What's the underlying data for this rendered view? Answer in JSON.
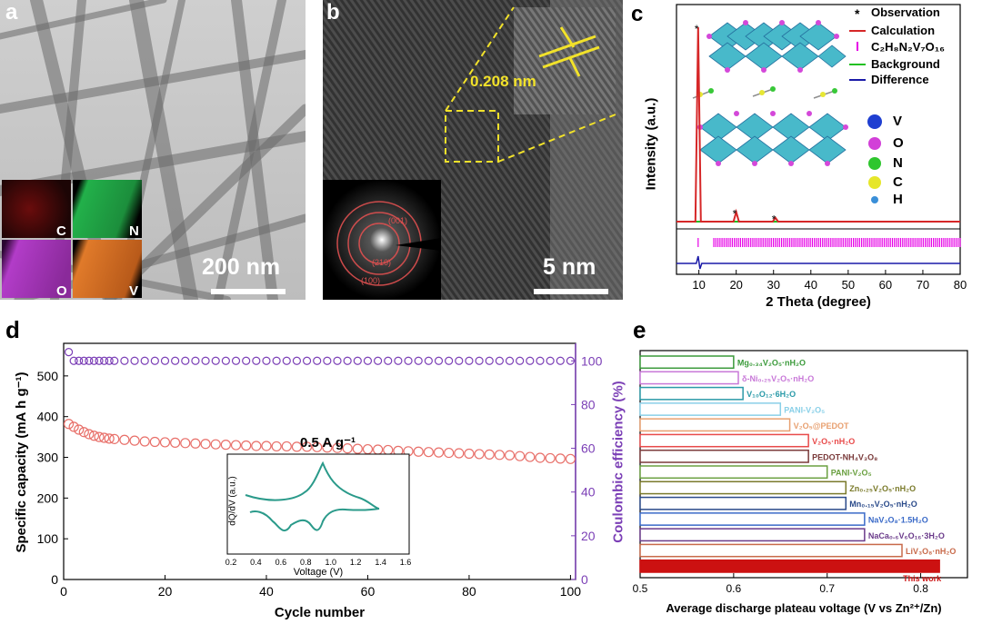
{
  "panel_a": {
    "label": "a",
    "scale_bar": "200 nm",
    "maps": [
      {
        "element": "C",
        "color": "#8a1a1a"
      },
      {
        "element": "N",
        "color": "#22b04a"
      },
      {
        "element": "O",
        "color": "#b23cc8"
      },
      {
        "element": "V",
        "color": "#e07a2a"
      }
    ]
  },
  "panel_b": {
    "label": "b",
    "scale_bar": "5 nm",
    "d_spacing": "0.208 nm",
    "saed_rings": [
      "(001)",
      "(210)",
      "(100)"
    ]
  },
  "panel_c": {
    "label": "c",
    "legend": {
      "observation": "Observation",
      "calculation": "Calculation",
      "phase": "C₂H₈N₂V₇O₁₆",
      "background": "Background",
      "difference": "Difference"
    },
    "atoms": [
      {
        "symbol": "V",
        "color": "#1f3fd1"
      },
      {
        "symbol": "O",
        "color": "#d23fd8"
      },
      {
        "symbol": "N",
        "color": "#2ec62e"
      },
      {
        "symbol": "C",
        "color": "#e6e62a"
      },
      {
        "symbol": "H",
        "color": "#3a8fd8"
      }
    ],
    "colors": {
      "observation": "#000000",
      "calculation": "#d62728",
      "bragg": "#e600e6",
      "background": "#22c022",
      "difference": "#1a1aa8"
    }
  },
  "panel_d": {
    "label": "d",
    "annotation": "0.5 A g⁻¹",
    "inset": {
      "xlabel": "Voltage (V)",
      "ylabel": "dQ/dV (a.u.)",
      "xticks": [
        "0.2",
        "0.4",
        "0.6",
        "0.8",
        "1.0",
        "1.2",
        "1.4",
        "1.6"
      ]
    }
  },
  "panel_e": {
    "label": "e"
  },
  "chart_data": [
    {
      "type": "line",
      "panel": "c",
      "xlabel": "2 Theta (degree)",
      "ylabel": "Intensity (a.u.)",
      "xlim": [
        4,
        80
      ],
      "xticks": [
        10,
        20,
        30,
        40,
        50,
        60,
        70,
        80
      ],
      "peaks": [
        {
          "x": 9.8,
          "relative_intensity": 1.0
        },
        {
          "x": 20.0,
          "relative_intensity": 0.05
        },
        {
          "x": 30.5,
          "relative_intensity": 0.02
        }
      ]
    },
    {
      "type": "scatter",
      "panel": "d",
      "xlabel": "Cycle number",
      "ylabel": "Specific capacity (mA h g⁻¹)",
      "y2label": "Coulombic efficiency (%)",
      "xlim": [
        0,
        101
      ],
      "ylim": [
        0,
        580
      ],
      "y2lim": [
        0,
        108
      ],
      "xticks": [
        0,
        20,
        40,
        60,
        80,
        100
      ],
      "yticks": [
        0,
        100,
        200,
        300,
        400,
        500
      ],
      "y2ticks": [
        0,
        20,
        40,
        60,
        80,
        100
      ],
      "series": [
        {
          "name": "Specific capacity",
          "color": "#e8706a",
          "x": [
            1,
            2,
            3,
            4,
            5,
            6,
            7,
            8,
            9,
            10,
            12,
            14,
            16,
            18,
            20,
            22,
            24,
            26,
            28,
            30,
            32,
            34,
            36,
            38,
            40,
            42,
            44,
            46,
            48,
            50,
            52,
            54,
            56,
            58,
            60,
            62,
            64,
            66,
            68,
            70,
            72,
            74,
            76,
            78,
            80,
            82,
            84,
            86,
            88,
            90,
            92,
            94,
            96,
            98,
            100
          ],
          "values": [
            382,
            375,
            368,
            362,
            357,
            353,
            350,
            348,
            346,
            345,
            343,
            341,
            339,
            338,
            337,
            336,
            335,
            334,
            333,
            332,
            331,
            330,
            329,
            328,
            328,
            327,
            327,
            326,
            326,
            325,
            324,
            323,
            322,
            321,
            320,
            319,
            318,
            316,
            315,
            314,
            313,
            312,
            311,
            310,
            309,
            308,
            307,
            306,
            305,
            303,
            301,
            299,
            298,
            297,
            296
          ]
        },
        {
          "name": "Coulombic efficiency",
          "color": "#7b3fb6",
          "x": [
            1,
            2,
            3,
            4,
            5,
            6,
            7,
            8,
            9,
            10,
            12,
            14,
            16,
            18,
            20,
            22,
            24,
            26,
            28,
            30,
            32,
            34,
            36,
            38,
            40,
            42,
            44,
            46,
            48,
            50,
            52,
            54,
            56,
            58,
            60,
            62,
            64,
            66,
            68,
            70,
            72,
            74,
            76,
            78,
            80,
            82,
            84,
            86,
            88,
            90,
            92,
            94,
            96,
            98,
            100
          ],
          "values": [
            104,
            100,
            100,
            100,
            100,
            100,
            100,
            100,
            100,
            100,
            100,
            100,
            100,
            100,
            100,
            100,
            100,
            100,
            100,
            100,
            100,
            100,
            100,
            100,
            100,
            100,
            100,
            100,
            100,
            100,
            100,
            100,
            100,
            100,
            100,
            100,
            100,
            100,
            100,
            100,
            100,
            100,
            100,
            100,
            100,
            100,
            100,
            100,
            100,
            100,
            100,
            100,
            100,
            100,
            100
          ]
        }
      ]
    },
    {
      "type": "bar",
      "panel": "e",
      "orientation": "horizontal",
      "xlabel": "Average discharge plateau voltage (V vs Zn²⁺/Zn)",
      "xlim": [
        0.5,
        0.85
      ],
      "xticks": [
        0.5,
        0.6,
        0.7,
        0.8
      ],
      "categories": [
        "Mg₀.₃₄V₂O₅·nH₂O",
        "δ-Ni₀.₂₅V₂O₅·nH₂O",
        "V₁₀O₁₂·6H₂O",
        "PANI-V₂O₅",
        "V₂O₅@PEDOT",
        "V₂O₅·nH₂O",
        "PEDOT-NH₄V₃O₈",
        "PANI-V₂O₅",
        "Zn₀.₂₅V₂O₅·nH₂O",
        "Mn₀.₁₅V₂O₅·nH₂O",
        "NaV₃O₈·1.5H₂O",
        "NaCa₀.₆V₆O₁₆·3H₂O",
        "LiV₃O₈·nH₂O",
        "This work"
      ],
      "values": [
        0.6,
        0.605,
        0.61,
        0.65,
        0.66,
        0.68,
        0.68,
        0.7,
        0.72,
        0.72,
        0.74,
        0.74,
        0.78,
        0.82
      ],
      "colors": [
        "#3a9a3a",
        "#c878d8",
        "#2a9aa8",
        "#8ad0e8",
        "#e8a070",
        "#e84a4a",
        "#7a3a3a",
        "#6aa040",
        "#7a7a2a",
        "#2a4a8a",
        "#3a6ac8",
        "#6a3a8a",
        "#c86a4a",
        "#cc1111"
      ]
    }
  ]
}
